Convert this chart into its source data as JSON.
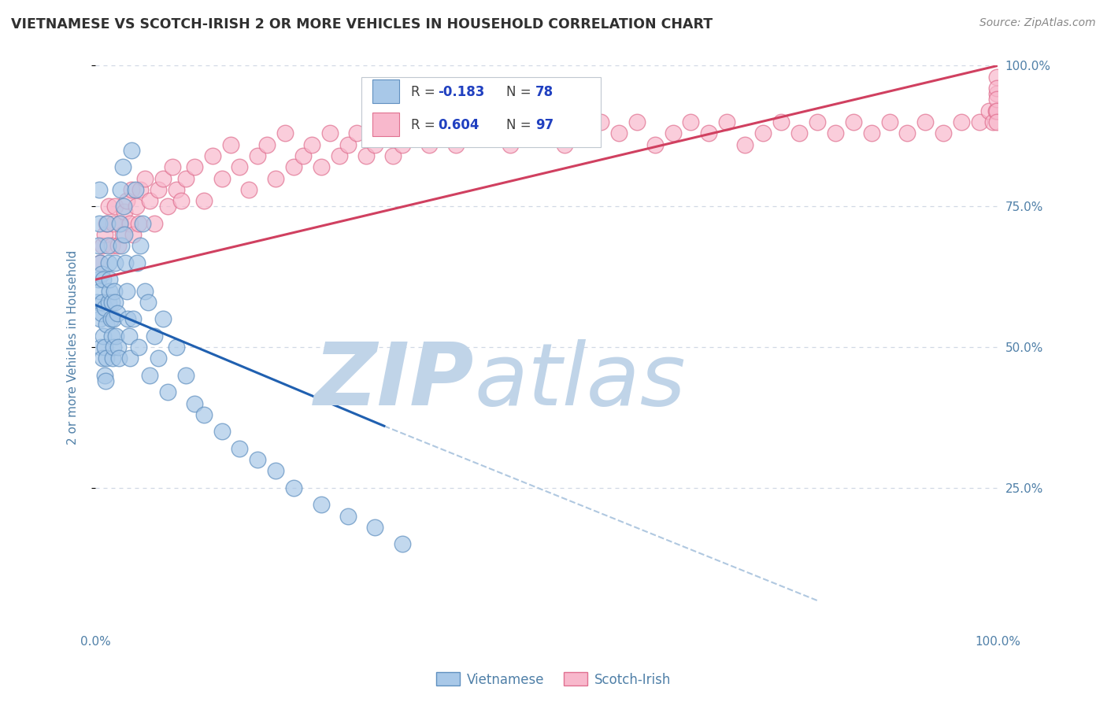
{
  "title": "VIETNAMESE VS SCOTCH-IRISH 2 OR MORE VEHICLES IN HOUSEHOLD CORRELATION CHART",
  "source_text": "Source: ZipAtlas.com",
  "ylabel": "2 or more Vehicles in Household",
  "blue_color": "#a8c8e8",
  "blue_edge": "#6090c0",
  "pink_color": "#f8b8cc",
  "pink_edge": "#e07090",
  "blue_line_color": "#2060b0",
  "pink_line_color": "#d04060",
  "dash_color": "#b0c8e0",
  "watermark_zip": "ZIP",
  "watermark_atlas": "atlas",
  "watermark_color_zip": "#c0d4e8",
  "watermark_color_atlas": "#c0d4e8",
  "axis_color": "#5080a8",
  "grid_color": "#d0d8e4",
  "title_color": "#303030",
  "legend_box_edge": "#c0c8d0",
  "legend_R_color": "#2040c0",
  "legend_N_color": "#303030",
  "background": "#ffffff",
  "vietnamese_R": -0.183,
  "vietnamese_N": 78,
  "scotch_R": 0.604,
  "scotch_N": 97,
  "xlim": [
    0.0,
    1.0
  ],
  "ylim": [
    0.0,
    1.0
  ],
  "viet_x": [
    0.002,
    0.003,
    0.003,
    0.004,
    0.004,
    0.005,
    0.005,
    0.005,
    0.006,
    0.007,
    0.007,
    0.008,
    0.008,
    0.009,
    0.009,
    0.01,
    0.01,
    0.01,
    0.011,
    0.012,
    0.012,
    0.013,
    0.014,
    0.015,
    0.015,
    0.016,
    0.016,
    0.017,
    0.018,
    0.018,
    0.019,
    0.02,
    0.02,
    0.021,
    0.022,
    0.022,
    0.023,
    0.024,
    0.025,
    0.026,
    0.027,
    0.028,
    0.029,
    0.03,
    0.031,
    0.032,
    0.033,
    0.035,
    0.036,
    0.037,
    0.038,
    0.04,
    0.042,
    0.044,
    0.046,
    0.048,
    0.05,
    0.052,
    0.055,
    0.058,
    0.06,
    0.065,
    0.07,
    0.075,
    0.08,
    0.09,
    0.1,
    0.11,
    0.12,
    0.14,
    0.16,
    0.18,
    0.2,
    0.22,
    0.25,
    0.28,
    0.31,
    0.34
  ],
  "viet_y": [
    0.58,
    0.62,
    0.68,
    0.72,
    0.78,
    0.55,
    0.6,
    0.65,
    0.5,
    0.56,
    0.63,
    0.48,
    0.58,
    0.52,
    0.62,
    0.45,
    0.5,
    0.57,
    0.44,
    0.48,
    0.54,
    0.72,
    0.68,
    0.65,
    0.58,
    0.6,
    0.62,
    0.55,
    0.52,
    0.58,
    0.48,
    0.5,
    0.55,
    0.6,
    0.58,
    0.65,
    0.52,
    0.56,
    0.5,
    0.48,
    0.72,
    0.78,
    0.68,
    0.82,
    0.75,
    0.7,
    0.65,
    0.6,
    0.55,
    0.52,
    0.48,
    0.85,
    0.55,
    0.78,
    0.65,
    0.5,
    0.68,
    0.72,
    0.6,
    0.58,
    0.45,
    0.52,
    0.48,
    0.55,
    0.42,
    0.5,
    0.45,
    0.4,
    0.38,
    0.35,
    0.32,
    0.3,
    0.28,
    0.25,
    0.22,
    0.2,
    0.18,
    0.15
  ],
  "scotch_x": [
    0.005,
    0.008,
    0.01,
    0.012,
    0.015,
    0.018,
    0.02,
    0.022,
    0.025,
    0.028,
    0.03,
    0.032,
    0.035,
    0.038,
    0.04,
    0.042,
    0.045,
    0.048,
    0.05,
    0.055,
    0.06,
    0.065,
    0.07,
    0.075,
    0.08,
    0.085,
    0.09,
    0.095,
    0.1,
    0.11,
    0.12,
    0.13,
    0.14,
    0.15,
    0.16,
    0.17,
    0.18,
    0.19,
    0.2,
    0.21,
    0.22,
    0.23,
    0.24,
    0.25,
    0.26,
    0.27,
    0.28,
    0.29,
    0.3,
    0.31,
    0.32,
    0.33,
    0.34,
    0.35,
    0.36,
    0.37,
    0.38,
    0.39,
    0.4,
    0.42,
    0.44,
    0.46,
    0.48,
    0.5,
    0.52,
    0.54,
    0.56,
    0.58,
    0.6,
    0.62,
    0.64,
    0.66,
    0.68,
    0.7,
    0.72,
    0.74,
    0.76,
    0.78,
    0.8,
    0.82,
    0.84,
    0.86,
    0.88,
    0.9,
    0.92,
    0.94,
    0.96,
    0.98,
    0.99,
    0.995,
    0.998,
    0.999,
    0.999,
    0.999,
    0.999,
    0.999,
    0.999
  ],
  "scotch_y": [
    0.65,
    0.68,
    0.7,
    0.72,
    0.75,
    0.68,
    0.72,
    0.75,
    0.68,
    0.72,
    0.7,
    0.74,
    0.76,
    0.72,
    0.78,
    0.7,
    0.75,
    0.72,
    0.78,
    0.8,
    0.76,
    0.72,
    0.78,
    0.8,
    0.75,
    0.82,
    0.78,
    0.76,
    0.8,
    0.82,
    0.76,
    0.84,
    0.8,
    0.86,
    0.82,
    0.78,
    0.84,
    0.86,
    0.8,
    0.88,
    0.82,
    0.84,
    0.86,
    0.82,
    0.88,
    0.84,
    0.86,
    0.88,
    0.84,
    0.86,
    0.88,
    0.84,
    0.86,
    0.88,
    0.9,
    0.86,
    0.88,
    0.9,
    0.86,
    0.88,
    0.9,
    0.86,
    0.88,
    0.9,
    0.86,
    0.88,
    0.9,
    0.88,
    0.9,
    0.86,
    0.88,
    0.9,
    0.88,
    0.9,
    0.86,
    0.88,
    0.9,
    0.88,
    0.9,
    0.88,
    0.9,
    0.88,
    0.9,
    0.88,
    0.9,
    0.88,
    0.9,
    0.9,
    0.92,
    0.9,
    0.92,
    0.95,
    0.98,
    0.96,
    0.94,
    0.92,
    0.9
  ],
  "blue_line_x": [
    0.0,
    0.32
  ],
  "blue_line_y": [
    0.575,
    0.36
  ],
  "dash_line_x": [
    0.32,
    0.8
  ],
  "dash_line_y": [
    0.36,
    0.05
  ],
  "pink_line_x": [
    0.0,
    1.0
  ],
  "pink_line_y": [
    0.62,
    1.0
  ]
}
